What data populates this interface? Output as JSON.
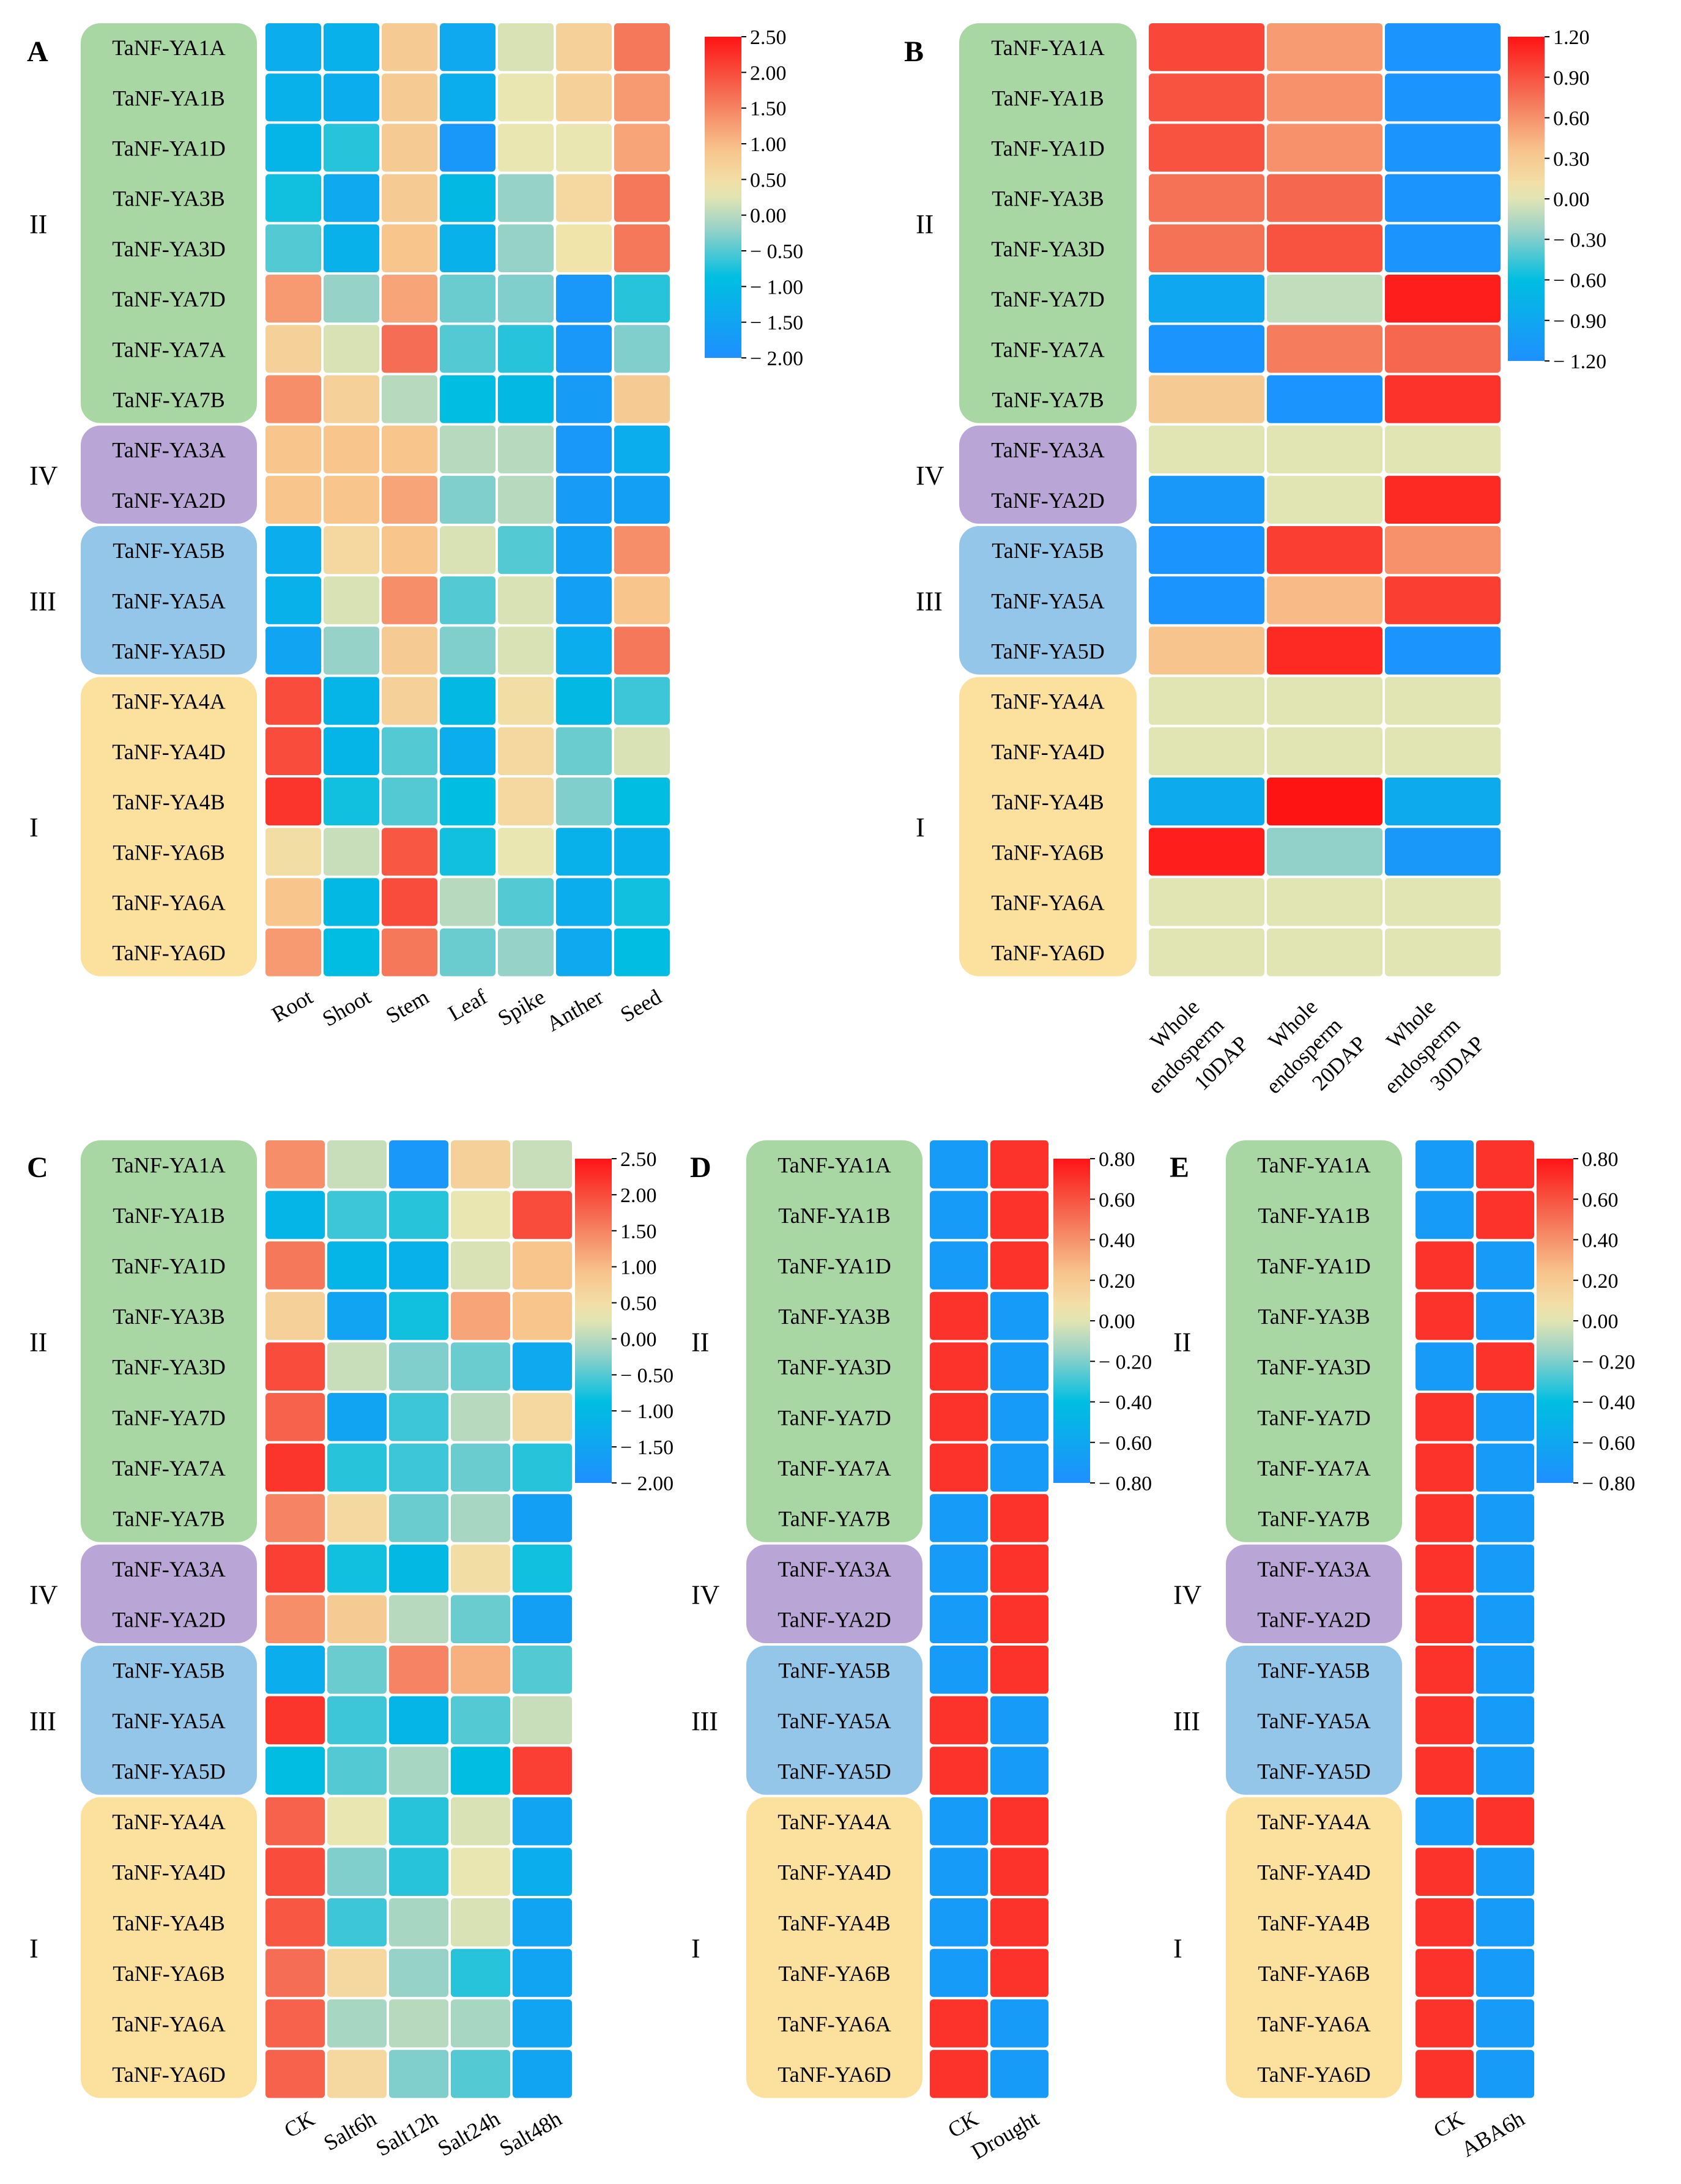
{
  "colors": {
    "group_II": "#a9d7a4",
    "group_IV": "#b9a6d6",
    "group_III": "#94c6ea",
    "group_I": "#fbe09e",
    "scale_low": "#1e90ff",
    "scale_high": "#ff1a1a"
  },
  "genes": [
    "TaNF-YA1A",
    "TaNF-YA1B",
    "TaNF-YA1D",
    "TaNF-YA3B",
    "TaNF-YA3D",
    "TaNF-YA7D",
    "TaNF-YA7A",
    "TaNF-YA7B",
    "TaNF-YA3A",
    "TaNF-YA2D",
    "TaNF-YA5B",
    "TaNF-YA5A",
    "TaNF-YA5D",
    "TaNF-YA4A",
    "TaNF-YA4D",
    "TaNF-YA4B",
    "TaNF-YA6B",
    "TaNF-YA6A",
    "TaNF-YA6D"
  ],
  "groups": [
    {
      "label": "II",
      "count": 8,
      "color_key": "group_II"
    },
    {
      "label": "IV",
      "count": 2,
      "color_key": "group_IV"
    },
    {
      "label": "III",
      "count": 3,
      "color_key": "group_III"
    },
    {
      "label": "I",
      "count": 6,
      "color_key": "group_I"
    }
  ],
  "chart_data": [
    {
      "panel": "A",
      "type": "heatmap",
      "categories": [
        "Root",
        "Shoot",
        "Stem",
        "Leaf",
        "Spike",
        "Anther",
        "Seed"
      ],
      "vmin": -2.0,
      "vmax": 2.5,
      "colorbar_ticks": [
        "2.50",
        "2.00",
        "1.50",
        "1.00",
        "0.50",
        "0.00",
        "− 0.50",
        "− 1.00",
        "− 1.50",
        "− 2.00"
      ],
      "values": [
        [
          -1.3,
          -1.2,
          0.8,
          -1.4,
          0.2,
          0.7,
          1.6
        ],
        [
          -1.2,
          -1.3,
          0.8,
          -1.3,
          0.3,
          0.7,
          1.3
        ],
        [
          -1.1,
          -0.7,
          0.8,
          -1.8,
          0.3,
          0.3,
          1.2
        ],
        [
          -0.8,
          -1.4,
          0.8,
          -1.0,
          -0.2,
          0.6,
          1.6
        ],
        [
          -0.5,
          -1.2,
          0.9,
          -1.2,
          -0.2,
          0.4,
          1.6
        ],
        [
          1.3,
          -0.2,
          1.2,
          -0.4,
          -0.3,
          -1.8,
          -0.7
        ],
        [
          0.7,
          0.2,
          1.7,
          -0.5,
          -0.7,
          -1.8,
          -0.3
        ],
        [
          1.4,
          0.7,
          0.0,
          -0.9,
          -1.0,
          -1.7,
          0.8
        ],
        [
          0.9,
          0.9,
          0.9,
          0.0,
          0.0,
          -1.8,
          -1.3
        ],
        [
          0.9,
          0.9,
          1.2,
          -0.3,
          0.0,
          -1.7,
          -1.6
        ],
        [
          -1.3,
          0.6,
          0.9,
          0.2,
          -0.5,
          -1.6,
          1.4
        ],
        [
          -1.2,
          0.2,
          1.4,
          -0.5,
          0.2,
          -1.6,
          0.9
        ],
        [
          -1.5,
          -0.2,
          0.8,
          -0.3,
          0.2,
          -1.3,
          1.6
        ],
        [
          2.0,
          -1.1,
          0.7,
          -1.0,
          0.5,
          -1.0,
          -0.6
        ],
        [
          2.0,
          -1.1,
          -0.5,
          -1.3,
          0.6,
          -0.4,
          0.2
        ],
        [
          2.2,
          -0.8,
          -0.5,
          -0.9,
          0.6,
          -0.3,
          -0.9
        ],
        [
          0.5,
          0.1,
          1.9,
          -0.8,
          0.3,
          -1.2,
          -1.2
        ],
        [
          0.9,
          -1.0,
          2.0,
          0.0,
          -0.5,
          -1.3,
          -0.8
        ],
        [
          1.3,
          -0.9,
          1.6,
          -0.4,
          -0.2,
          -1.4,
          -0.9
        ]
      ]
    },
    {
      "panel": "B",
      "type": "heatmap",
      "categories": [
        "Whole endosperm 10DAP",
        "Whole endosperm 20DAP",
        "Whole endosperm 30DAP"
      ],
      "category_lines": [
        [
          "Whole",
          "endosperm",
          "10DAP"
        ],
        [
          "Whole",
          "endosperm",
          "20DAP"
        ],
        [
          "Whole",
          "endosperm",
          "30DAP"
        ]
      ],
      "vmin": -1.2,
      "vmax": 1.2,
      "colorbar_ticks": [
        "1.20",
        "0.90",
        "0.60",
        "0.30",
        "0.00",
        "− 0.30",
        "− 0.60",
        "− 0.90",
        "− 1.20"
      ],
      "values": [
        [
          0.95,
          0.55,
          -1.15
        ],
        [
          0.9,
          0.6,
          -1.15
        ],
        [
          0.9,
          0.6,
          -1.15
        ],
        [
          0.75,
          0.8,
          -1.15
        ],
        [
          0.75,
          0.9,
          -1.15
        ],
        [
          -0.9,
          -0.1,
          1.15
        ],
        [
          -1.15,
          0.7,
          0.8
        ],
        [
          0.3,
          -1.15,
          1.05
        ],
        [
          0.0,
          0.0,
          0.0
        ],
        [
          -1.1,
          0.0,
          1.1
        ],
        [
          -1.15,
          1.0,
          0.6
        ],
        [
          -1.15,
          0.4,
          1.0
        ],
        [
          0.35,
          1.1,
          -1.15
        ],
        [
          0.0,
          0.0,
          0.0
        ],
        [
          0.0,
          0.0,
          0.0
        ],
        [
          -0.85,
          1.2,
          -0.85
        ],
        [
          1.15,
          -0.25,
          -1.1
        ],
        [
          0.0,
          0.0,
          0.0
        ],
        [
          0.0,
          0.0,
          0.0
        ]
      ]
    },
    {
      "panel": "C",
      "type": "heatmap",
      "categories": [
        "CK",
        "Salt6h",
        "Salt12h",
        "Salt24h",
        "Salt48h"
      ],
      "vmin": -2.0,
      "vmax": 2.5,
      "colorbar_ticks": [
        "2.50",
        "2.00",
        "1.50",
        "1.00",
        "0.50",
        "0.00",
        "− 0.50",
        "− 1.00",
        "− 1.50",
        "− 2.00"
      ],
      "values": [
        [
          1.4,
          0.1,
          -1.8,
          0.7,
          0.1
        ],
        [
          -1.1,
          -0.6,
          -0.7,
          0.3,
          2.0
        ],
        [
          1.6,
          -1.1,
          -1.2,
          0.2,
          0.9
        ],
        [
          0.7,
          -1.5,
          -0.8,
          1.2,
          0.9
        ],
        [
          2.0,
          0.1,
          -0.3,
          -0.4,
          -1.4
        ],
        [
          1.8,
          -1.5,
          -0.6,
          0.0,
          0.6
        ],
        [
          2.2,
          -0.7,
          -0.6,
          -0.4,
          -0.7
        ],
        [
          1.5,
          0.6,
          -0.4,
          -0.1,
          -1.6
        ],
        [
          2.1,
          -0.8,
          -1.0,
          0.5,
          -0.8
        ],
        [
          1.4,
          0.8,
          0.0,
          -0.4,
          -1.6
        ],
        [
          -1.3,
          -0.4,
          1.5,
          1.1,
          -0.5
        ],
        [
          2.2,
          -0.6,
          -1.1,
          -0.5,
          0.1
        ],
        [
          -0.9,
          -0.5,
          -0.1,
          -0.9,
          2.1
        ],
        [
          1.8,
          0.3,
          -0.7,
          0.2,
          -1.5
        ],
        [
          2.0,
          -0.3,
          -0.7,
          0.3,
          -1.3
        ],
        [
          1.9,
          -0.6,
          -0.1,
          0.2,
          -1.5
        ],
        [
          1.7,
          0.6,
          -0.2,
          -0.7,
          -1.5
        ],
        [
          1.8,
          -0.1,
          0.0,
          -0.1,
          -1.5
        ],
        [
          1.8,
          0.6,
          -0.3,
          -0.5,
          -1.5
        ]
      ]
    },
    {
      "panel": "D",
      "type": "heatmap",
      "categories": [
        "CK",
        "Drought"
      ],
      "vmin": -0.8,
      "vmax": 0.8,
      "colorbar_ticks": [
        "0.80",
        "0.60",
        "0.40",
        "0.20",
        "0.00",
        "− 0.20",
        "− 0.40",
        "− 0.60",
        "− 0.80"
      ],
      "values": [
        [
          -0.7,
          0.7
        ],
        [
          -0.7,
          0.7
        ],
        [
          -0.7,
          0.7
        ],
        [
          0.7,
          -0.7
        ],
        [
          0.7,
          -0.7
        ],
        [
          0.7,
          -0.7
        ],
        [
          0.7,
          -0.7
        ],
        [
          -0.7,
          0.7
        ],
        [
          -0.7,
          0.7
        ],
        [
          -0.7,
          0.7
        ],
        [
          -0.7,
          0.7
        ],
        [
          0.7,
          -0.7
        ],
        [
          0.7,
          -0.7
        ],
        [
          -0.7,
          0.7
        ],
        [
          -0.7,
          0.7
        ],
        [
          -0.7,
          0.7
        ],
        [
          -0.7,
          0.7
        ],
        [
          0.7,
          -0.7
        ],
        [
          0.7,
          -0.7
        ]
      ]
    },
    {
      "panel": "E",
      "type": "heatmap",
      "categories": [
        "CK",
        "ABA6h"
      ],
      "vmin": -0.8,
      "vmax": 0.8,
      "colorbar_ticks": [
        "0.80",
        "0.60",
        "0.40",
        "0.20",
        "0.00",
        "− 0.20",
        "− 0.40",
        "− 0.60",
        "− 0.80"
      ],
      "values": [
        [
          -0.7,
          0.7
        ],
        [
          -0.7,
          0.7
        ],
        [
          0.7,
          -0.7
        ],
        [
          0.7,
          -0.7
        ],
        [
          -0.7,
          0.7
        ],
        [
          0.7,
          -0.7
        ],
        [
          0.7,
          -0.7
        ],
        [
          0.7,
          -0.7
        ],
        [
          0.7,
          -0.7
        ],
        [
          0.7,
          -0.7
        ],
        [
          0.7,
          -0.7
        ],
        [
          0.7,
          -0.7
        ],
        [
          0.7,
          -0.7
        ],
        [
          -0.7,
          0.7
        ],
        [
          0.7,
          -0.7
        ],
        [
          0.7,
          -0.7
        ],
        [
          0.7,
          -0.7
        ],
        [
          0.7,
          -0.7
        ],
        [
          0.7,
          -0.7
        ]
      ]
    }
  ]
}
